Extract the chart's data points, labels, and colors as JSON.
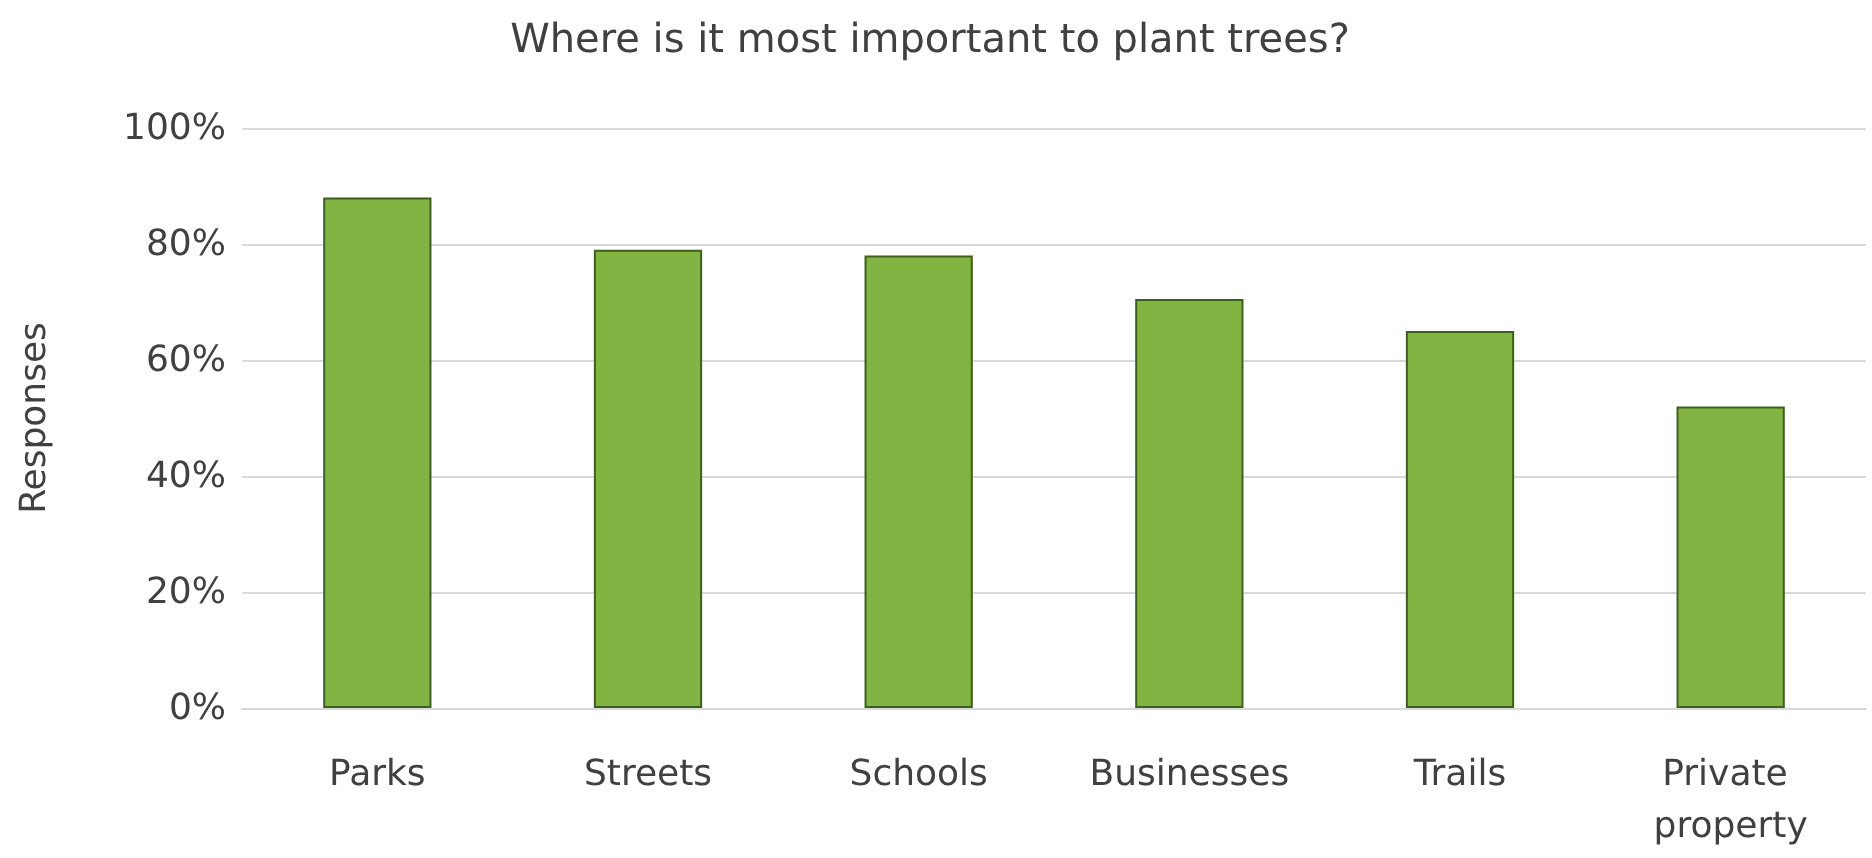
{
  "chart_data": {
    "type": "bar",
    "title": "Where is it most important to plant trees?",
    "ylabel": "Responses",
    "categories": [
      "Parks",
      "Streets",
      "Schools",
      "Businesses",
      "Trails",
      "Private property"
    ],
    "values": [
      88,
      79,
      78,
      70.5,
      65,
      52
    ],
    "color": "#82b443",
    "ylim": [
      0,
      100
    ],
    "yticks": [
      {
        "value": 0,
        "label": "0%"
      },
      {
        "value": 20,
        "label": "20%"
      },
      {
        "value": 40,
        "label": "40%"
      },
      {
        "value": 60,
        "label": "60%"
      },
      {
        "value": 80,
        "label": "80%"
      },
      {
        "value": 100,
        "label": "100%"
      }
    ],
    "grid": "y"
  }
}
